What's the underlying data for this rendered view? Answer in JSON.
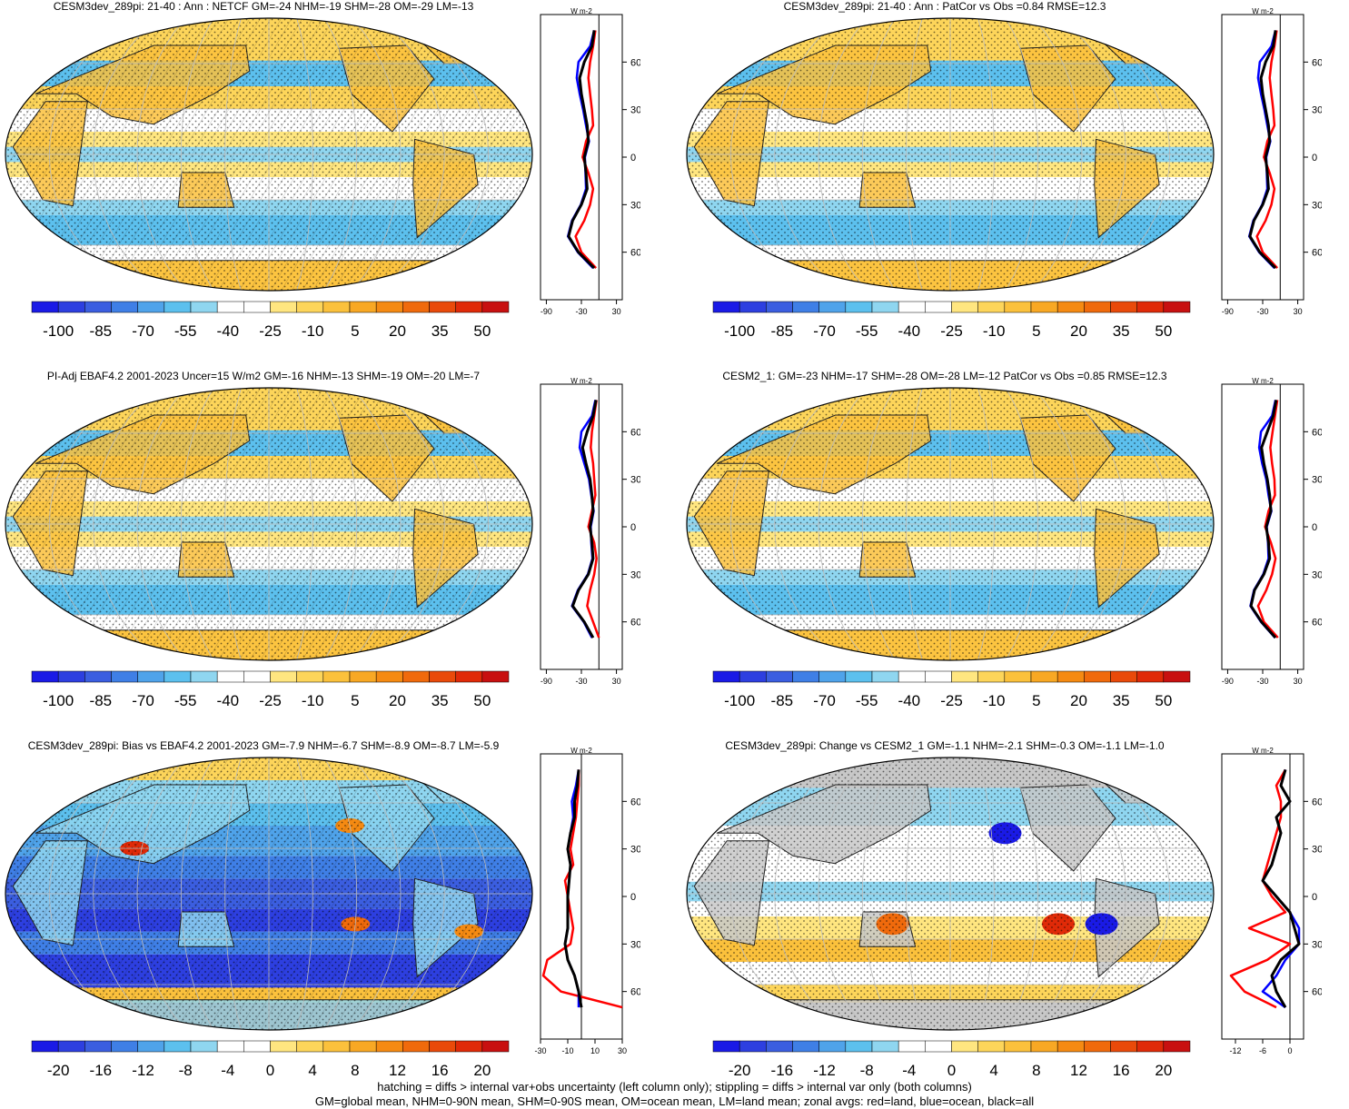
{
  "panels": [
    {
      "title": "CESM3dev_289pi: 21-40 : Ann : NETCF GM=-24 NHM=-19 SHM=-28 OM=-29 LM=-13",
      "colorbar_ticks": [
        "-100",
        "-85",
        "-70",
        "-55",
        "-40",
        "-25",
        "-10",
        "5",
        "20",
        "35",
        "50"
      ],
      "zonal_xticks": [
        "-90",
        "-30",
        "30"
      ],
      "zonal_yticks": [
        "60N",
        "30N",
        "0",
        "30S",
        "60S"
      ],
      "zonal_unit": "W m-2",
      "hatching": true,
      "palette": "standard"
    },
    {
      "title": "CESM3dev_289pi: 21-40 : Ann : PatCor vs Obs =0.84 RMSE=12.3",
      "colorbar_ticks": [
        "-100",
        "-85",
        "-70",
        "-55",
        "-40",
        "-25",
        "-10",
        "5",
        "20",
        "35",
        "50"
      ],
      "zonal_xticks": [
        "-90",
        "-30",
        "30"
      ],
      "zonal_yticks": [
        "60N",
        "30N",
        "0",
        "30S",
        "60S"
      ],
      "zonal_unit": "W m-2",
      "hatching": false,
      "palette": "standard"
    },
    {
      "title": "PI-Adj EBAF4.2 2001-2023 Uncer=15 W/m2 GM=-16 NHM=-13 SHM=-19 OM=-20 LM=-7",
      "colorbar_ticks": [
        "-100",
        "-85",
        "-70",
        "-55",
        "-40",
        "-25",
        "-10",
        "5",
        "20",
        "35",
        "50"
      ],
      "zonal_xticks": [
        "-90",
        "-30",
        "30"
      ],
      "zonal_yticks": [
        "60N",
        "30N",
        "0",
        "30S",
        "60S"
      ],
      "zonal_unit": "W m-2",
      "hatching": true,
      "palette": "standard"
    },
    {
      "title": "CESM2_1: GM=-23 NHM=-17 SHM=-28 OM=-28 LM=-12 PatCor vs Obs =0.85 RMSE=12.3",
      "colorbar_ticks": [
        "-100",
        "-85",
        "-70",
        "-55",
        "-40",
        "-25",
        "-10",
        "5",
        "20",
        "35",
        "50"
      ],
      "zonal_xticks": [
        "-90",
        "-30",
        "30"
      ],
      "zonal_yticks": [
        "60N",
        "30N",
        "0",
        "30S",
        "60S"
      ],
      "zonal_unit": "W m-2",
      "hatching": false,
      "palette": "standard"
    },
    {
      "title": "CESM3dev_289pi: Bias vs EBAF4.2 2001-2023 GM=-7.9 NHM=-6.7 SHM=-8.9 OM=-8.7 LM=-5.9",
      "colorbar_ticks": [
        "-20",
        "-16",
        "-12",
        "-8",
        "-4",
        "0",
        "4",
        "8",
        "12",
        "16",
        "20"
      ],
      "zonal_xticks": [
        "-30",
        "-10",
        "10",
        "30"
      ],
      "zonal_yticks": [
        "60N",
        "30N",
        "0",
        "30S",
        "60S"
      ],
      "zonal_unit": "W m-2",
      "hatching": true,
      "palette": "bias"
    },
    {
      "title": "CESM3dev_289pi: Change vs CESM2_1 GM=-1.1 NHM=-2.1 SHM=-0.3 OM=-1.1 LM=-1.0",
      "colorbar_ticks": [
        "-20",
        "-16",
        "-12",
        "-8",
        "-4",
        "0",
        "4",
        "8",
        "12",
        "16",
        "20"
      ],
      "zonal_xticks": [
        "-12",
        "-6",
        "0"
      ],
      "zonal_yticks": [
        "60N",
        "30N",
        "0",
        "30S",
        "60S"
      ],
      "zonal_unit": "W m-2",
      "hatching": false,
      "palette": "change"
    }
  ],
  "colors": {
    "colorbar": [
      "#1a1ae6",
      "#2d3fe0",
      "#3b5ee0",
      "#3f7fe6",
      "#4fa3ea",
      "#5cc0ee",
      "#8fd6f0",
      "#ffffff",
      "#ffffff",
      "#ffe680",
      "#fdd55a",
      "#fbc13c",
      "#f8a824",
      "#f58a12",
      "#f06a0c",
      "#e94a0a",
      "#e02a08",
      "#c81010"
    ],
    "land_gray": "#c8c8c8",
    "red": "#ff0000",
    "blue": "#0000ff",
    "black": "#000000"
  },
  "footer": {
    "line1": "hatching = diffs > internal var+obs uncertainty (left column only); stippling = diffs > internal var only (both columns)",
    "line2": "GM=global mean, NHM=0-90N mean, SHM=0-90S mean, OM=ocean mean, LM=land mean; zonal avgs: red=land, blue=ocean, black=all"
  },
  "chart_data": [
    {
      "type": "heatmap",
      "title": "CESM3dev_289pi: 21-40 : Ann : NETCF GM=-24 NHM=-19 SHM=-28 OM=-29 LM=-13",
      "colorbar_range": [
        -100,
        50
      ],
      "zonal_mean": {
        "lat": [
          80,
          70,
          60,
          50,
          40,
          30,
          20,
          10,
          0,
          -10,
          -20,
          -30,
          -40,
          -50,
          -60,
          -70
        ],
        "all": [
          -8,
          -12,
          -25,
          -33,
          -30,
          -25,
          -20,
          -18,
          -25,
          -22,
          -20,
          -30,
          -45,
          -52,
          -35,
          -8
        ],
        "land": [
          -6,
          -10,
          -15,
          -18,
          -15,
          -12,
          -10,
          -22,
          -28,
          -18,
          -10,
          -15,
          -25,
          -40,
          -30,
          -5
        ],
        "ocean": [
          -8,
          -15,
          -35,
          -38,
          -33,
          -27,
          -22,
          -17,
          -24,
          -23,
          -22,
          -31,
          -46,
          -53,
          -36,
          -10
        ],
        "xlim": [
          -100,
          40
        ]
      }
    },
    {
      "type": "heatmap",
      "title": "CESM3dev_289pi: 21-40 : Ann : PatCor vs Obs =0.84 RMSE=12.3",
      "colorbar_range": [
        -100,
        50
      ],
      "zonal_mean": {
        "lat": [
          80,
          70,
          60,
          50,
          40,
          30,
          20,
          10,
          0,
          -10,
          -20,
          -30,
          -40,
          -50,
          -60,
          -70
        ],
        "all": [
          -8,
          -12,
          -25,
          -33,
          -30,
          -25,
          -20,
          -18,
          -25,
          -22,
          -20,
          -30,
          -45,
          -52,
          -35,
          -8
        ],
        "land": [
          -6,
          -10,
          -15,
          -18,
          -15,
          -12,
          -10,
          -22,
          -28,
          -18,
          -10,
          -15,
          -25,
          -40,
          -30,
          -5
        ],
        "ocean": [
          -8,
          -15,
          -35,
          -38,
          -33,
          -27,
          -22,
          -17,
          -24,
          -23,
          -22,
          -31,
          -46,
          -53,
          -36,
          -10
        ],
        "xlim": [
          -100,
          40
        ]
      }
    },
    {
      "type": "heatmap",
      "title": "PI-Adj EBAF4.2 2001-2023 Uncer=15 W/m2 GM=-16 NHM=-13 SHM=-19 OM=-20 LM=-7",
      "colorbar_range": [
        -100,
        50
      ],
      "zonal_mean": {
        "lat": [
          80,
          70,
          60,
          50,
          40,
          30,
          20,
          10,
          0,
          -10,
          -20,
          -30,
          -40,
          -50,
          -60,
          -70
        ],
        "all": [
          -5,
          -10,
          -20,
          -28,
          -22,
          -15,
          -12,
          -10,
          -15,
          -12,
          -10,
          -18,
          -35,
          -45,
          -25,
          -10
        ],
        "land": [
          -4,
          -8,
          -12,
          -14,
          -10,
          -8,
          -6,
          -12,
          -18,
          -8,
          -4,
          -8,
          -15,
          -20,
          -10,
          0
        ],
        "ocean": [
          -6,
          -12,
          -30,
          -33,
          -25,
          -17,
          -13,
          -9,
          -14,
          -13,
          -11,
          -19,
          -36,
          -46,
          -26,
          -12
        ],
        "xlim": [
          -100,
          40
        ]
      }
    },
    {
      "type": "heatmap",
      "title": "CESM2_1: GM=-23 NHM=-17 SHM=-28 OM=-28 LM=-12 PatCor vs Obs =0.85 RMSE=12.3",
      "colorbar_range": [
        -100,
        50
      ],
      "zonal_mean": {
        "lat": [
          80,
          70,
          60,
          50,
          40,
          30,
          20,
          10,
          0,
          -10,
          -20,
          -30,
          -40,
          -50,
          -60,
          -70
        ],
        "all": [
          -7,
          -12,
          -22,
          -32,
          -28,
          -22,
          -18,
          -16,
          -24,
          -20,
          -18,
          -28,
          -44,
          -50,
          -32,
          -8
        ],
        "land": [
          -5,
          -9,
          -13,
          -17,
          -14,
          -10,
          -9,
          -20,
          -26,
          -16,
          -8,
          -14,
          -24,
          -38,
          -28,
          -4
        ],
        "ocean": [
          -8,
          -14,
          -33,
          -36,
          -31,
          -24,
          -20,
          -15,
          -23,
          -21,
          -20,
          -29,
          -45,
          -51,
          -33,
          -9
        ],
        "xlim": [
          -100,
          40
        ]
      }
    },
    {
      "type": "heatmap",
      "title": "CESM3dev_289pi: Bias vs EBAF4.2 2001-2023 GM=-7.9 NHM=-6.7 SHM=-8.9 OM=-8.7 LM=-5.9",
      "colorbar_range": [
        -20,
        20
      ],
      "zonal_mean": {
        "lat": [
          80,
          70,
          60,
          50,
          40,
          30,
          20,
          10,
          0,
          -10,
          -20,
          -30,
          -40,
          -50,
          -60,
          -70
        ],
        "all": [
          -2,
          -3,
          -5,
          -5,
          -8,
          -10,
          -8,
          -9,
          -10,
          -10,
          -10,
          -12,
          -10,
          -5,
          -2,
          0
        ],
        "land": [
          -2,
          -2,
          -3,
          -4,
          -6,
          -8,
          -6,
          -12,
          -10,
          -8,
          -6,
          -8,
          -25,
          -28,
          -15,
          30
        ],
        "ocean": [
          -2,
          -4,
          -7,
          -6,
          -8,
          -10,
          -8,
          -9,
          -10,
          -10,
          -10,
          -12,
          -10,
          -5,
          -2,
          -2
        ],
        "xlim": [
          -30,
          30
        ]
      }
    },
    {
      "type": "heatmap",
      "title": "CESM3dev_289pi: Change vs CESM2_1 GM=-1.1 NHM=-2.1 SHM=-0.3 OM=-1.1 LM=-1.0",
      "colorbar_range": [
        -20,
        20
      ],
      "zonal_mean": {
        "lat": [
          80,
          70,
          60,
          50,
          40,
          30,
          20,
          10,
          0,
          -10,
          -20,
          -30,
          -40,
          -50,
          -60,
          -70
        ],
        "all": [
          -1,
          -2,
          0,
          -3,
          -2,
          -3,
          -4,
          -6,
          -3,
          0,
          1,
          2,
          -2,
          -4,
          -3,
          -1
        ],
        "land": [
          -1,
          -3,
          -2,
          -2,
          -3,
          -4,
          -5,
          -6,
          -4,
          -1,
          -9,
          0,
          -5,
          -13,
          -10,
          -3
        ],
        "ocean": [
          -1,
          -2,
          0,
          -3,
          -2,
          -3,
          -4,
          -6,
          -3,
          0,
          2,
          2,
          -1,
          -3,
          -6,
          -1
        ],
        "xlim": [
          -15,
          3
        ]
      }
    }
  ]
}
